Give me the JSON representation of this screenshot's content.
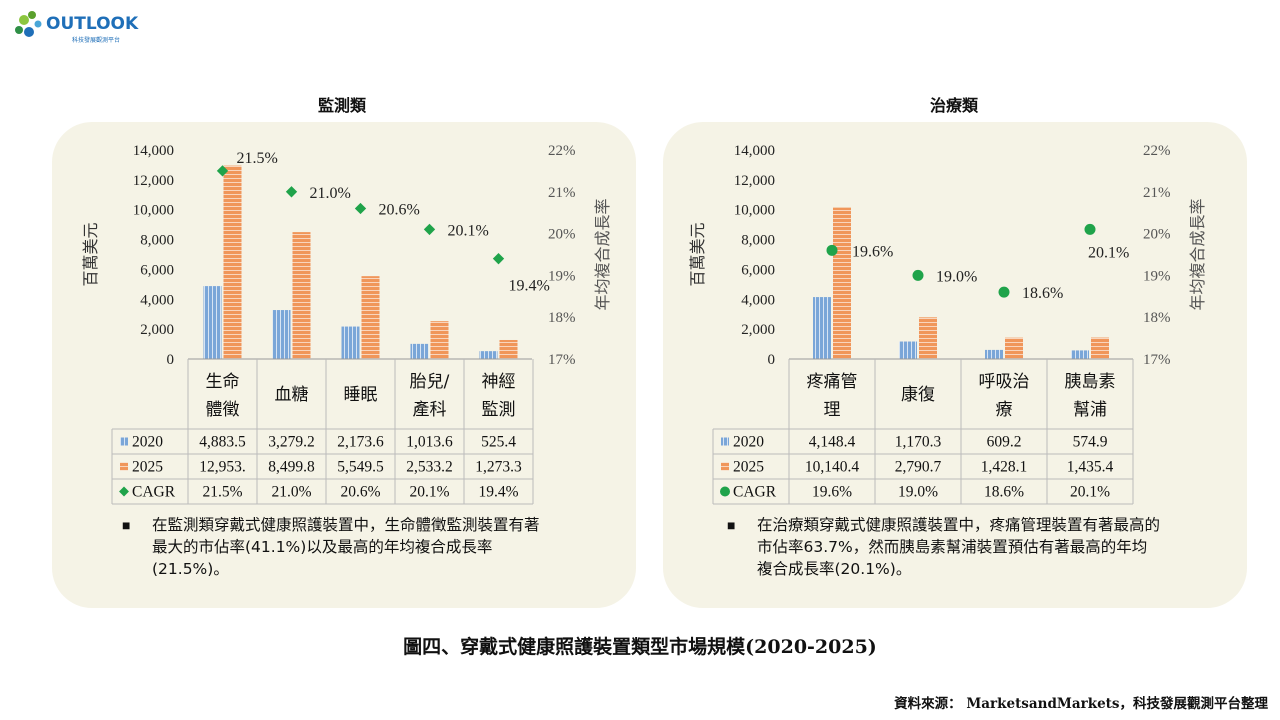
{
  "logo": {
    "text": "OUTLOOK",
    "subtitle": "科技發展觀測平台"
  },
  "figure_title": "圖四、穿戴式健康照護裝置類型市場規模(2020-2025)",
  "source": "資料來源： MarketsandMarkets，科技發展觀測平台整理",
  "colors": {
    "bar2020": "#7aa6d8",
    "bar2025": "#f0965a",
    "cagr": "#1fa34a",
    "panel": "#f5f3e6"
  },
  "chart_data": [
    {
      "type": "bar",
      "title": "監測類",
      "ylabel": "百萬美元",
      "y2label": "年均複合成長率",
      "ylim": [
        0,
        14000
      ],
      "yticks": [
        "0",
        "2,000",
        "4,000",
        "6,000",
        "8,000",
        "10,000",
        "12,000",
        "14,000"
      ],
      "y2lim": [
        17,
        22
      ],
      "y2ticks": [
        "17%",
        "18%",
        "19%",
        "20%",
        "21%",
        "22%"
      ],
      "categories": [
        [
          "生命",
          "體徵"
        ],
        [
          "血糖"
        ],
        [
          "睡眠"
        ],
        [
          "胎兒/",
          "產科"
        ],
        [
          "神經",
          "監測"
        ]
      ],
      "series": [
        {
          "name": "2020",
          "values": [
            4883.5,
            3279.2,
            2173.6,
            1013.6,
            525.4
          ],
          "labels": [
            "4,883.5",
            "3,279.2",
            "2,173.6",
            "1,013.6",
            "525.4"
          ]
        },
        {
          "name": "2025",
          "values": [
            12953,
            8499.8,
            5549.5,
            2533.2,
            1273.3
          ],
          "labels": [
            "12,953.",
            "8,499.8",
            "5,549.5",
            "2,533.2",
            "1,273.3"
          ]
        },
        {
          "name": "CAGR",
          "values": [
            21.5,
            21.0,
            20.6,
            20.1,
            19.4
          ],
          "labels": [
            "21.5%",
            "21.0%",
            "20.6%",
            "20.1%",
            "19.4%"
          ],
          "marker": "diamond"
        }
      ],
      "point_labels": [
        "21.5%",
        "21.0%",
        "20.6%",
        "20.1%",
        "19.4%"
      ],
      "note": "在監測類穿戴式健康照護裝置中，生命體徵監測裝置有著最大的市佔率(41.1%)以及最高的年均複合成長率(21.5%)。"
    },
    {
      "type": "bar",
      "title": "治療類",
      "ylabel": "百萬美元",
      "y2label": "年均複合成長率",
      "ylim": [
        0,
        14000
      ],
      "yticks": [
        "0",
        "2,000",
        "4,000",
        "6,000",
        "8,000",
        "10,000",
        "12,000",
        "14,000"
      ],
      "y2lim": [
        17,
        22
      ],
      "y2ticks": [
        "17%",
        "18%",
        "19%",
        "20%",
        "21%",
        "22%"
      ],
      "categories": [
        [
          "疼痛管",
          "理"
        ],
        [
          "康復"
        ],
        [
          "呼吸治",
          "療"
        ],
        [
          "胰島素",
          "幫浦"
        ]
      ],
      "series": [
        {
          "name": "2020",
          "values": [
            4148.4,
            1170.3,
            609.2,
            574.9
          ],
          "labels": [
            "4,148.4",
            "1,170.3",
            "609.2",
            "574.9"
          ]
        },
        {
          "name": "2025",
          "values": [
            10140.4,
            2790.7,
            1428.1,
            1435.4
          ],
          "labels": [
            "10,140.4",
            "2,790.7",
            "1,428.1",
            "1,435.4"
          ]
        },
        {
          "name": "CAGR",
          "values": [
            19.6,
            19.0,
            18.6,
            20.1
          ],
          "labels": [
            "19.6%",
            "19.0%",
            "18.6%",
            "20.1%"
          ],
          "marker": "circle"
        }
      ],
      "point_labels": [
        "19.6%",
        "19.0%",
        "18.6%",
        "20.1%"
      ],
      "note": "在治療類穿戴式健康照護裝置中，疼痛管理裝置有著最高的市佔率63.7%，然而胰島素幫浦裝置預估有著最高的年均複合成長率(20.1%)。"
    }
  ]
}
